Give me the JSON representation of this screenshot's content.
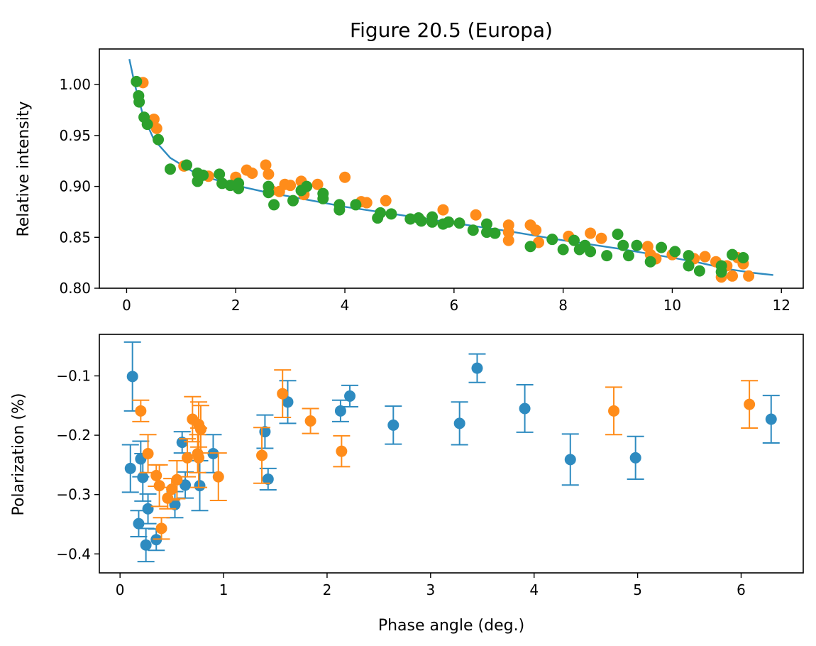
{
  "chart_data": [
    {
      "type": "scatter",
      "title": "Figure 20.5 (Europa)",
      "xlabel": "",
      "ylabel": "Relative intensity",
      "xlim": [
        -0.5,
        12.4
      ],
      "ylim": [
        0.8,
        1.035
      ],
      "xticks": [
        0,
        2,
        4,
        6,
        8,
        10,
        12
      ],
      "yticks": [
        0.8,
        0.85,
        0.9,
        0.95,
        1.0
      ],
      "xtick_labels": [
        "0",
        "2",
        "4",
        "6",
        "8",
        "10",
        "12"
      ],
      "ytick_labels": [
        "0.80",
        "0.85",
        "0.90",
        "0.95",
        "1.00"
      ],
      "colors": {
        "fit": "#2e8bc0",
        "series_a": "#ff8c1a",
        "series_b": "#2ca02c"
      },
      "fit_line": {
        "x": [
          0.05,
          0.15,
          0.3,
          0.5,
          0.8,
          1.2,
          1.6,
          2.0,
          2.5,
          3,
          3.5,
          4,
          5,
          6,
          7,
          8,
          9,
          10,
          10.5,
          11,
          11.5,
          11.85
        ],
        "y": [
          1.025,
          1.0,
          0.97,
          0.946,
          0.928,
          0.915,
          0.907,
          0.901,
          0.895,
          0.89,
          0.885,
          0.88,
          0.872,
          0.864,
          0.856,
          0.847,
          0.839,
          0.83,
          0.825,
          0.819,
          0.815,
          0.813
        ]
      },
      "series": [
        {
          "x": [
            0.3,
            0.5,
            0.55,
            1.05,
            1.5,
            2.0,
            2.2,
            2.3,
            2.55,
            2.6,
            2.65,
            2.8,
            2.9,
            3.0,
            3.2,
            3.25,
            3.5,
            4.0,
            4.3,
            4.4,
            4.75,
            5.8,
            6.4,
            7.0,
            7.0,
            7.0,
            7.4,
            7.5,
            7.55,
            8.1,
            8.5,
            8.7,
            9.55,
            9.6,
            9.7,
            10.0,
            10.4,
            10.6,
            10.8,
            10.9,
            11.0,
            11.1,
            11.2,
            11.3,
            11.4
          ],
          "y": [
            1.002,
            0.966,
            0.957,
            0.92,
            0.91,
            0.909,
            0.916,
            0.913,
            0.921,
            0.912,
            0.896,
            0.895,
            0.902,
            0.901,
            0.905,
            0.892,
            0.902,
            0.909,
            0.885,
            0.884,
            0.886,
            0.877,
            0.872,
            0.862,
            0.855,
            0.847,
            0.862,
            0.857,
            0.845,
            0.851,
            0.854,
            0.849,
            0.841,
            0.833,
            0.829,
            0.833,
            0.829,
            0.831,
            0.826,
            0.811,
            0.822,
            0.812,
            0.83,
            0.824,
            0.812
          ]
        },
        {
          "x": [
            0.18,
            0.22,
            0.23,
            0.32,
            0.38,
            0.58,
            0.8,
            1.1,
            1.3,
            1.3,
            1.4,
            1.7,
            1.75,
            1.9,
            2.05,
            2.05,
            2.6,
            2.6,
            2.7,
            3.05,
            3.2,
            3.3,
            3.6,
            3.6,
            3.9,
            3.9,
            4.2,
            4.6,
            4.65,
            4.85,
            5.2,
            5.35,
            5.4,
            5.6,
            5.6,
            5.8,
            5.9,
            6.1,
            6.35,
            6.6,
            6.6,
            6.75,
            7.4,
            7.8,
            8.0,
            8.2,
            8.3,
            8.4,
            8.5,
            8.8,
            9.0,
            9.1,
            9.2,
            9.35,
            9.6,
            9.8,
            10.05,
            10.3,
            10.3,
            10.5,
            10.9,
            10.9,
            11.1,
            11.3
          ],
          "y": [
            1.003,
            0.989,
            0.983,
            0.968,
            0.961,
            0.946,
            0.917,
            0.921,
            0.913,
            0.905,
            0.911,
            0.912,
            0.903,
            0.901,
            0.898,
            0.903,
            0.9,
            0.894,
            0.882,
            0.886,
            0.896,
            0.9,
            0.893,
            0.888,
            0.882,
            0.877,
            0.882,
            0.869,
            0.874,
            0.873,
            0.868,
            0.869,
            0.866,
            0.87,
            0.865,
            0.863,
            0.865,
            0.864,
            0.857,
            0.863,
            0.855,
            0.854,
            0.841,
            0.848,
            0.838,
            0.847,
            0.838,
            0.842,
            0.836,
            0.832,
            0.853,
            0.842,
            0.832,
            0.842,
            0.826,
            0.84,
            0.836,
            0.832,
            0.822,
            0.817,
            0.822,
            0.816,
            0.833,
            0.83
          ]
        }
      ]
    },
    {
      "type": "scatter",
      "title": "",
      "xlabel": "Phase angle (deg.)",
      "ylabel": "Polarization (%)",
      "xlim": [
        -0.2,
        6.6
      ],
      "ylim": [
        -0.432,
        -0.03
      ],
      "xticks": [
        0,
        1,
        2,
        3,
        4,
        5,
        6
      ],
      "yticks": [
        -0.1,
        -0.2,
        -0.3,
        -0.4
      ],
      "xtick_labels": [
        "0",
        "1",
        "2",
        "3",
        "4",
        "5",
        "6"
      ],
      "ytick_labels": [
        "−0.1",
        "−0.2",
        "−0.3",
        "−0.4"
      ],
      "colors": {
        "series_a": "#2e8bc0",
        "series_b": "#ff8c1a"
      },
      "series": [
        {
          "x": [
            0.1,
            0.12,
            0.18,
            0.2,
            0.22,
            0.25,
            0.27,
            0.35,
            0.53,
            0.6,
            0.63,
            0.77,
            0.9,
            1.4,
            1.43,
            1.62,
            2.13,
            2.22,
            2.64,
            3.28,
            3.45,
            3.91,
            4.35,
            4.98,
            6.29
          ],
          "y": [
            -0.256,
            -0.101,
            -0.349,
            -0.24,
            -0.271,
            -0.385,
            -0.324,
            -0.376,
            -0.317,
            -0.212,
            -0.284,
            -0.285,
            -0.231,
            -0.194,
            -0.274,
            -0.144,
            -0.159,
            -0.134,
            -0.183,
            -0.18,
            -0.087,
            -0.155,
            -0.241,
            -0.238,
            -0.173
          ],
          "err": [
            0.04,
            0.058,
            0.022,
            0.03,
            0.04,
            0.028,
            0.025,
            0.018,
            0.022,
            0.018,
            0.022,
            0.042,
            0.032,
            0.028,
            0.018,
            0.036,
            0.018,
            0.018,
            0.032,
            0.036,
            0.024,
            0.04,
            0.043,
            0.036,
            0.04
          ]
        },
        {
          "x": [
            0.2,
            0.27,
            0.35,
            0.38,
            0.4,
            0.46,
            0.5,
            0.55,
            0.65,
            0.7,
            0.75,
            0.76,
            0.76,
            0.78,
            0.95,
            1.37,
            1.57,
            1.84,
            2.14,
            4.77,
            6.08
          ],
          "y": [
            -0.159,
            -0.231,
            -0.268,
            -0.285,
            -0.357,
            -0.306,
            -0.291,
            -0.275,
            -0.238,
            -0.173,
            -0.231,
            -0.238,
            -0.182,
            -0.19,
            -0.27,
            -0.234,
            -0.13,
            -0.176,
            -0.227,
            -0.159,
            -0.148
          ],
          "err": [
            0.018,
            0.032,
            0.018,
            0.035,
            0.018,
            0.018,
            0.018,
            0.032,
            0.032,
            0.038,
            0.032,
            0.05,
            0.038,
            0.04,
            0.04,
            0.047,
            0.04,
            0.021,
            0.026,
            0.04,
            0.04
          ]
        }
      ]
    }
  ]
}
